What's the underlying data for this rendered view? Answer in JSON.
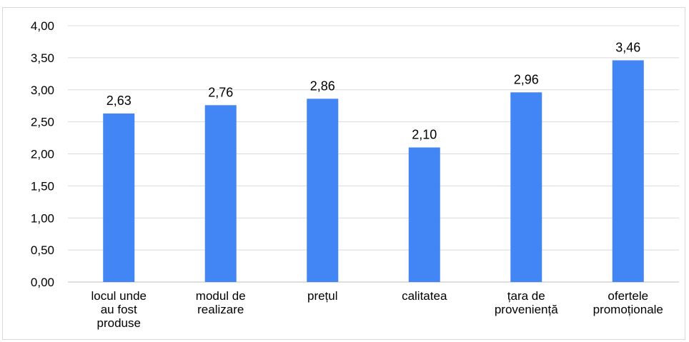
{
  "chart_data": {
    "type": "bar",
    "title": "",
    "xlabel": "",
    "ylabel": "",
    "categories": [
      [
        "locul unde",
        "au fost",
        "produse"
      ],
      [
        "modul de",
        "realizare"
      ],
      [
        "prețul"
      ],
      [
        "calitatea"
      ],
      [
        "țara de",
        "proveniență"
      ],
      [
        "ofertele",
        "promoționale"
      ]
    ],
    "values": [
      2.63,
      2.76,
      2.86,
      2.1,
      2.96,
      3.46
    ],
    "data_labels": [
      "2,63",
      "2,76",
      "2,86",
      "2,10",
      "2,96",
      "3,46"
    ],
    "ylim": [
      0,
      4
    ],
    "yticks": [
      0,
      0.5,
      1,
      1.5,
      2,
      2.5,
      3,
      3.5,
      4
    ],
    "ytick_labels": [
      "0,00",
      "0,50",
      "1,00",
      "1,50",
      "2,00",
      "2,50",
      "3,00",
      "3,50",
      "4,00"
    ],
    "grid": true,
    "legend": "none",
    "bar_color": "#4285f4"
  }
}
